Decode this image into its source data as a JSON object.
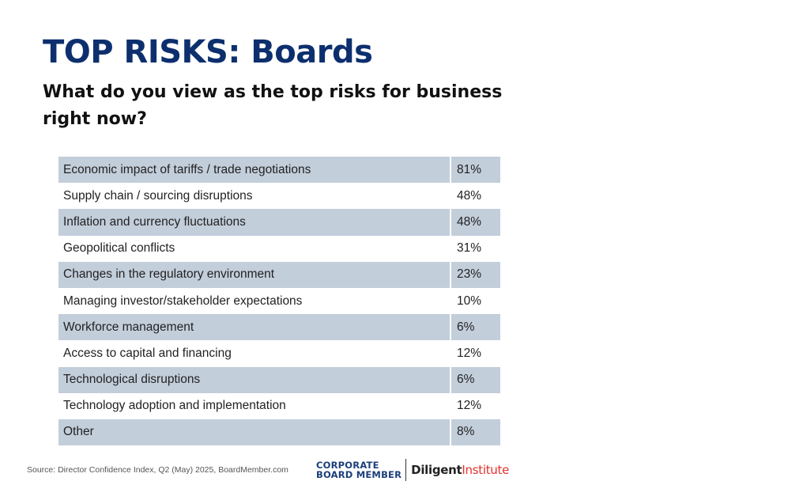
{
  "header": {
    "title": "TOP RISKS: Boards",
    "subtitle": "What do you view as the top risks for business right now?"
  },
  "chart_data": {
    "type": "table",
    "rows": [
      {
        "label": "Economic impact of tariffs / trade negotiations",
        "value": "81%"
      },
      {
        "label": "Supply chain / sourcing disruptions",
        "value": "48%"
      },
      {
        "label": "Inflation and currency fluctuations",
        "value": "48%"
      },
      {
        "label": "Geopolitical conflicts",
        "value": "31%"
      },
      {
        "label": "Changes in the regulatory environment",
        "value": "23%"
      },
      {
        "label": "Managing investor/stakeholder expectations",
        "value": "10%"
      },
      {
        "label": "Workforce management",
        "value": "6%"
      },
      {
        "label": "Access to capital and financing",
        "value": "12%"
      },
      {
        "label": "Technological disruptions",
        "value": "6%"
      },
      {
        "label": "Technology adoption and implementation",
        "value": "12%"
      },
      {
        "label": "Other",
        "value": "8%"
      }
    ]
  },
  "footer": {
    "source": "Source: Director Confidence Index, Q2 (May) 2025, BoardMember.com",
    "logo_cbm_line1": "CORPORATE",
    "logo_cbm_line2": "BOARD MEMBER",
    "logo_diligent_1": "Diligent",
    "logo_diligent_2": "Institute"
  },
  "colors": {
    "title": "#0d2f6e",
    "row_shade": "#c3cedb",
    "brand_red": "#e4312b"
  }
}
